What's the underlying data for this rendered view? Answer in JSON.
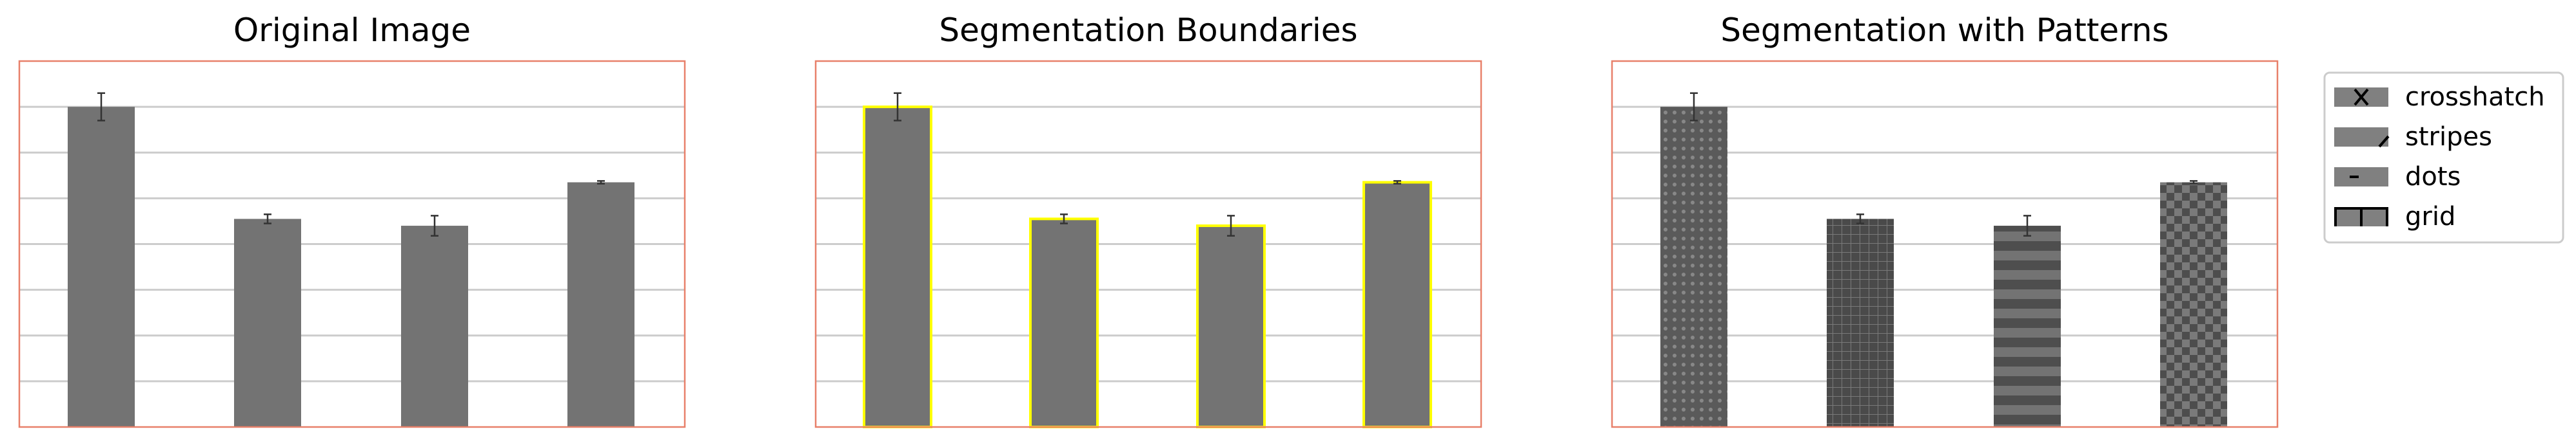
{
  "legend": {
    "items": [
      {
        "label": "crosshatch",
        "pattern": "crosshatch-icon"
      },
      {
        "label": "stripes",
        "pattern": "stripes-icon"
      },
      {
        "label": "dots",
        "pattern": "dots-icon"
      },
      {
        "label": "grid",
        "pattern": "grid-icon"
      }
    ]
  },
  "colors": {
    "bar": "#737373",
    "frame": "#e8806a",
    "gridline": "#cccccc",
    "boundary": "#ffff00",
    "errorbar": "#333333",
    "legend_border": "#cccccc"
  },
  "chart_data": [
    {
      "type": "bar",
      "title": "Original Image",
      "categories": [
        "",
        "",
        "",
        ""
      ],
      "values": [
        7.0,
        4.55,
        4.4,
        5.35
      ],
      "errors": [
        0.3,
        0.1,
        0.22,
        0.03
      ],
      "ylim": [
        0,
        8
      ],
      "grid": true,
      "style": "plain"
    },
    {
      "type": "bar",
      "title": "Segmentation Boundaries",
      "categories": [
        "",
        "",
        "",
        ""
      ],
      "values": [
        7.0,
        4.55,
        4.4,
        5.35
      ],
      "errors": [
        0.3,
        0.1,
        0.22,
        0.03
      ],
      "ylim": [
        0,
        8
      ],
      "grid": true,
      "style": "boundaries"
    },
    {
      "type": "bar",
      "title": "Segmentation with Patterns",
      "categories": [
        "",
        "",
        "",
        ""
      ],
      "values": [
        7.0,
        4.55,
        4.4,
        5.35
      ],
      "errors": [
        0.3,
        0.1,
        0.22,
        0.03
      ],
      "ylim": [
        0,
        8
      ],
      "grid": true,
      "style": "patterns",
      "bar_patterns": [
        "dots",
        "grid",
        "stripes",
        "checker"
      ]
    }
  ]
}
